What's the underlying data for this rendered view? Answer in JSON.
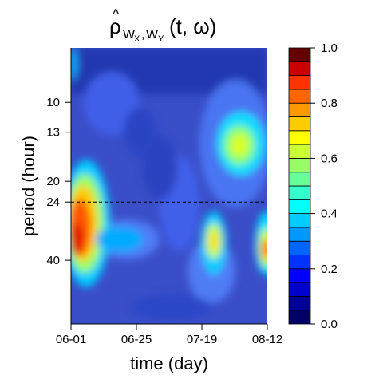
{
  "chart_data": {
    "type": "heatmap",
    "title": {
      "base": "ρ",
      "subscript_main": "W",
      "sub_x": "X",
      "sub_y": "Y",
      "args": "(t, ω)"
    },
    "xlabel": "time (day)",
    "ylabel": "period (hour)",
    "x_ticks": [
      "06-01",
      "06-25",
      "07-19",
      "08-12"
    ],
    "y_ticks": [
      10,
      13,
      20,
      24,
      40
    ],
    "y_scale": "log",
    "y_range_hours": [
      6.2,
      70
    ],
    "reference_line_hours": 24,
    "colorbar": {
      "ticks": [
        "0.0",
        "0.2",
        "0.4",
        "0.6",
        "0.8",
        "1.0"
      ],
      "range": [
        0,
        1
      ],
      "levels": 20,
      "colors": [
        "#000066",
        "#000099",
        "#0000cc",
        "#0000ff",
        "#0033ff",
        "#0066ff",
        "#0099ff",
        "#00ccff",
        "#00ffff",
        "#33ffcc",
        "#66ff99",
        "#99ff66",
        "#ccff33",
        "#ffff00",
        "#ffcc00",
        "#ff9900",
        "#ff6600",
        "#ff3300",
        "#cc0000",
        "#660000"
      ]
    },
    "high_coherence_regions": [
      {
        "time": "06-01 to 06-08",
        "period_hours": "14-35",
        "peak": 0.8
      },
      {
        "time": "around 07-19",
        "period_hours": "20-40",
        "peak": 0.55
      },
      {
        "time": "07-30 to 08-08",
        "period_hours": "10-14",
        "peak": 0.55
      },
      {
        "time": "around 08-12",
        "period_hours": "20-28",
        "peak": 0.75
      }
    ]
  }
}
